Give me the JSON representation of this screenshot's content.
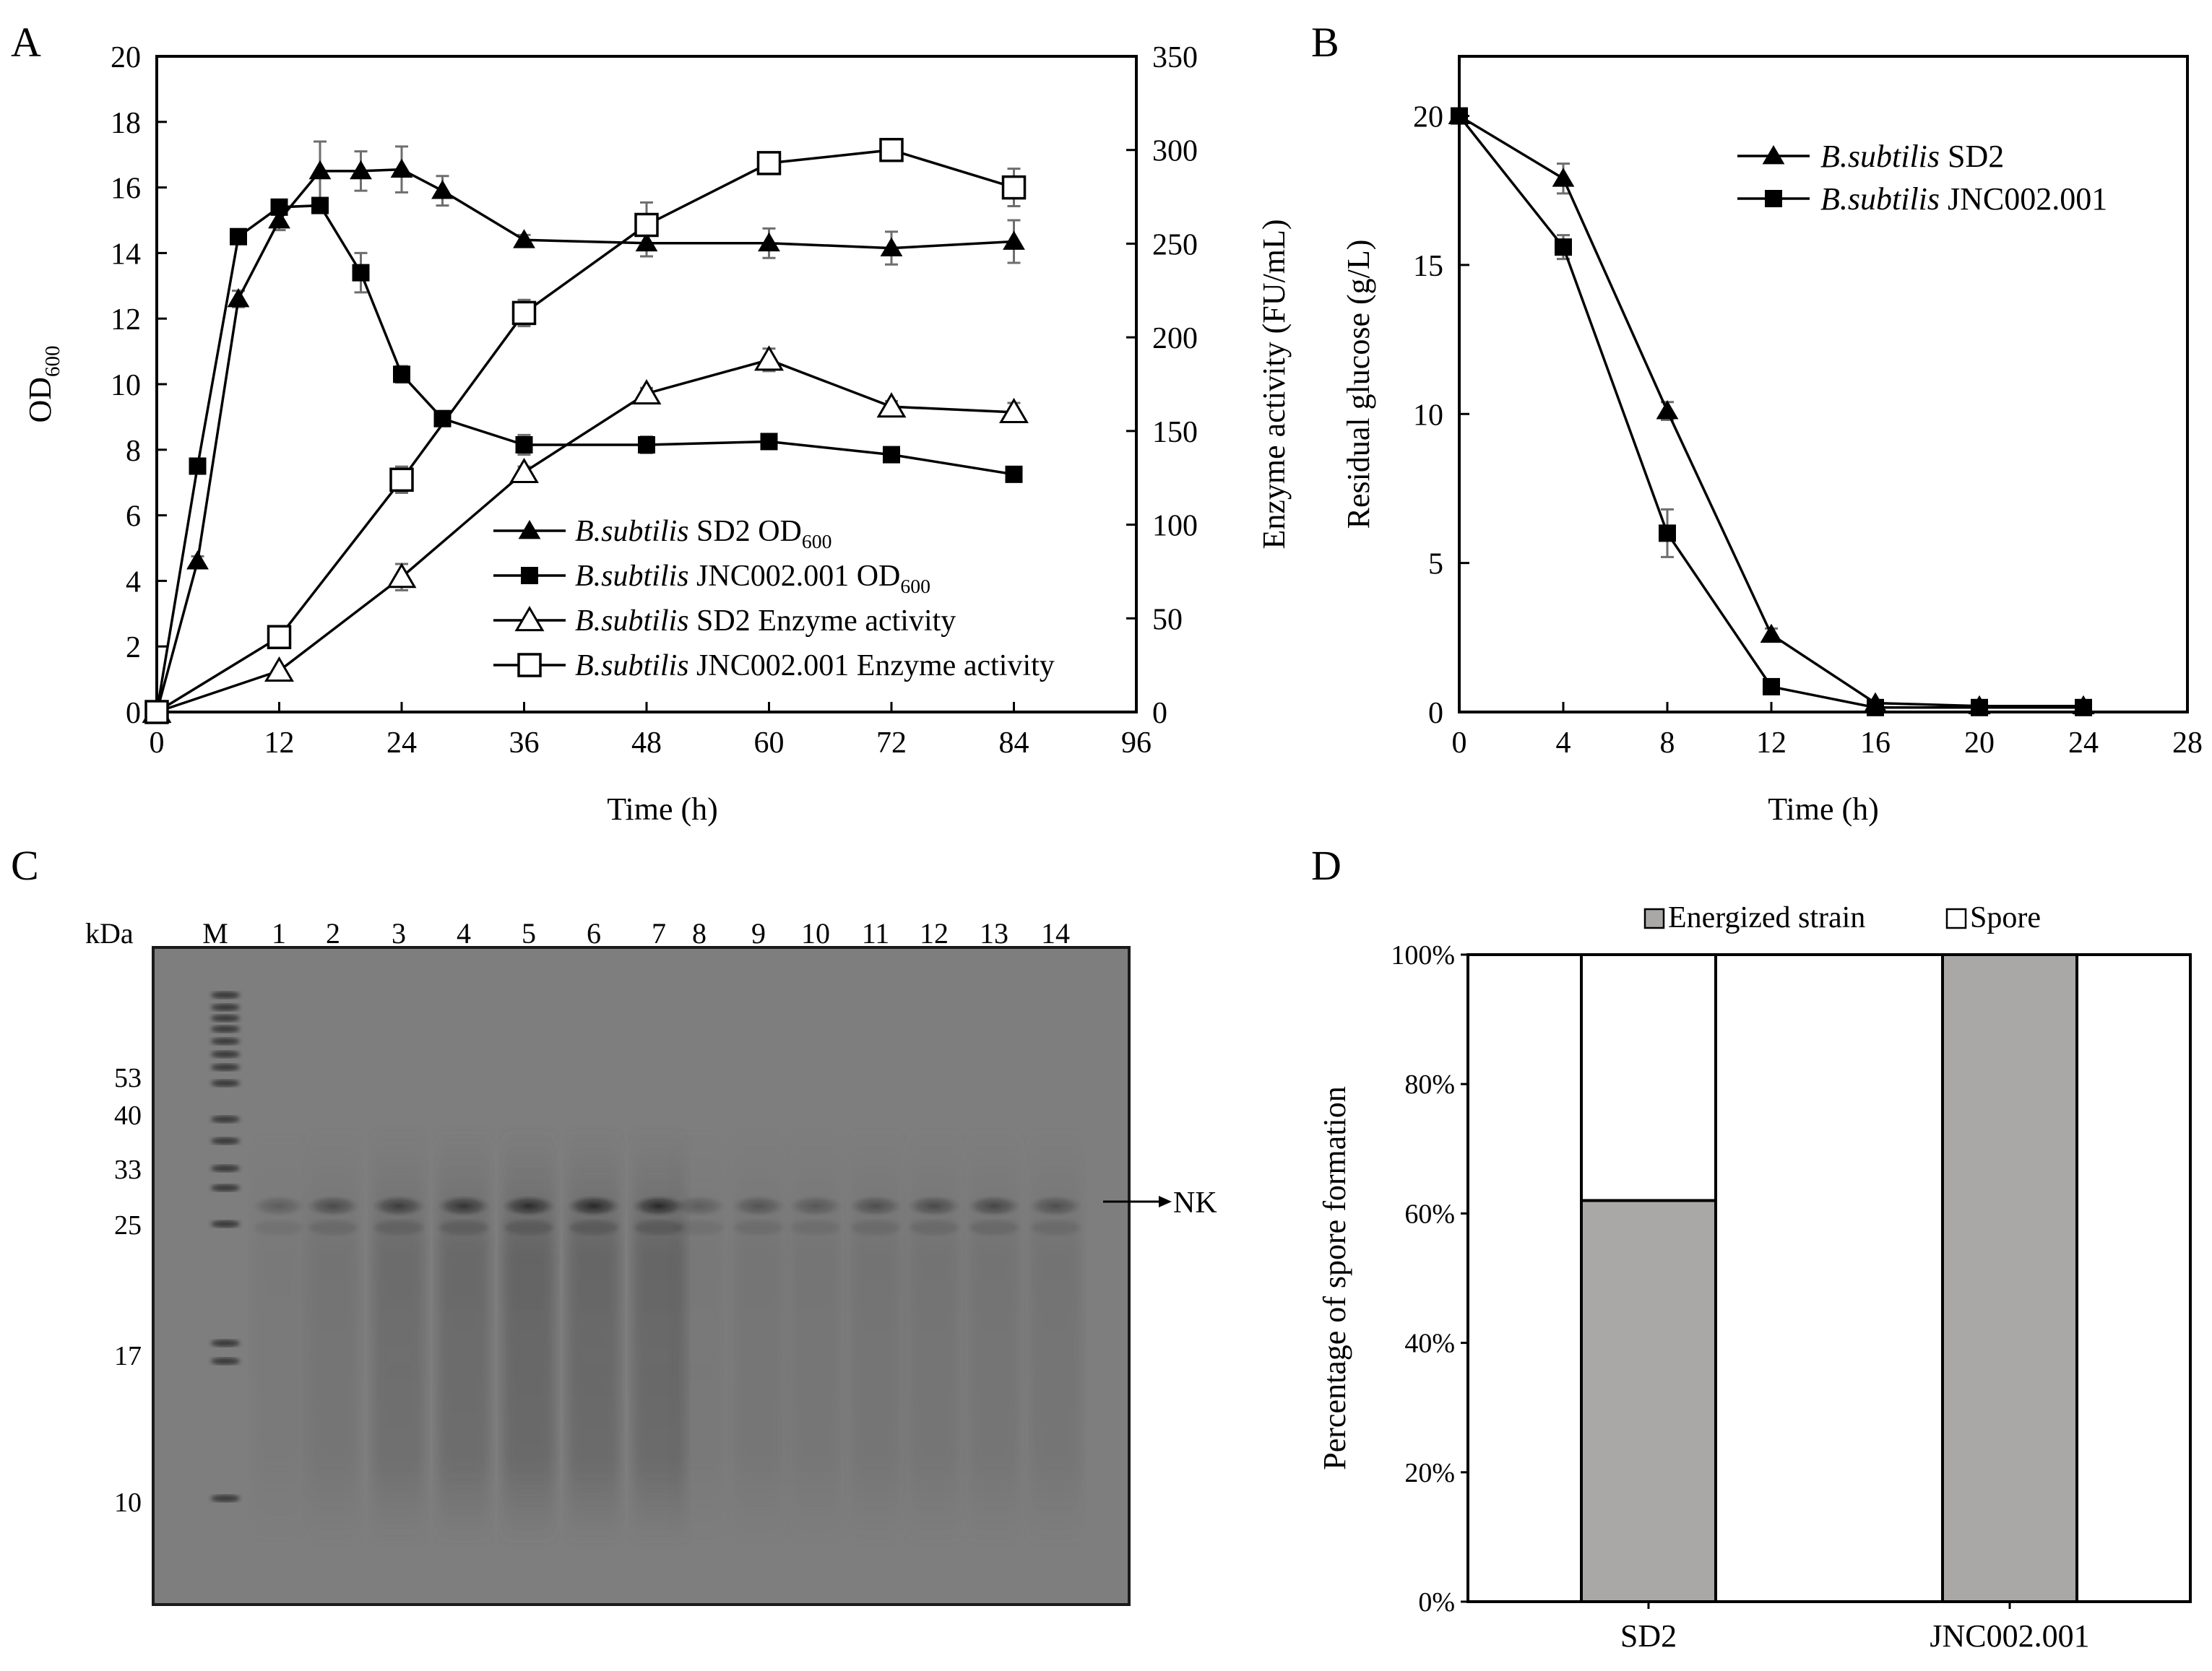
{
  "chart_data": [
    {
      "panel": "A",
      "type": "line",
      "xlabel": "Time (h)",
      "ylabel": "OD600",
      "ylabel_base": "OD",
      "ylabel_sub": "600",
      "y2label": "Enzyme activity (FU/mL)",
      "xlim": [
        0,
        96
      ],
      "xticks": [
        0,
        12,
        24,
        36,
        48,
        60,
        72,
        84,
        96
      ],
      "ylim": [
        0,
        20
      ],
      "yticks": [
        0,
        2,
        4,
        6,
        8,
        10,
        12,
        14,
        16,
        18,
        20
      ],
      "y2lim": [
        0,
        350
      ],
      "y2ticks": [
        0,
        50,
        100,
        150,
        200,
        250,
        300,
        350
      ],
      "legend_position": "lower-right inside",
      "series": [
        {
          "name": "B.subtilis SD2 OD600",
          "name_italic": "B.subtilis",
          "name_rest": " SD2 OD",
          "name_sub": "600",
          "axis": "left",
          "marker": "triangle-filled",
          "x": [
            0,
            4,
            8,
            12,
            16,
            20,
            24,
            28,
            36,
            48,
            60,
            72,
            84
          ],
          "y": [
            0,
            4.6,
            12.6,
            15.0,
            16.5,
            16.5,
            16.55,
            15.9,
            14.4,
            14.3,
            14.3,
            14.15,
            14.35
          ],
          "err": [
            0,
            0.15,
            0.25,
            0.3,
            0.9,
            0.6,
            0.7,
            0.45,
            0.15,
            0.4,
            0.45,
            0.5,
            0.65
          ]
        },
        {
          "name": "B.subtilis JNC002.001 OD600",
          "name_italic": "B.subtilis",
          "name_rest": " JNC002.001 OD",
          "name_sub": "600",
          "axis": "left",
          "marker": "square-filled",
          "x": [
            0,
            4,
            8,
            12,
            16,
            20,
            24,
            28,
            36,
            48,
            60,
            72,
            84
          ],
          "y": [
            0,
            7.5,
            14.5,
            15.4,
            15.45,
            13.4,
            10.3,
            8.95,
            8.15,
            8.15,
            8.25,
            7.85,
            7.25
          ],
          "err": [
            0,
            0.1,
            0.15,
            0.15,
            0.2,
            0.6,
            0.25,
            0.2,
            0.3,
            0.25,
            0.15,
            0.15,
            0.15
          ]
        },
        {
          "name": "B.subtilis SD2 Enzyme activity",
          "name_italic": "B.subtilis",
          "name_rest": " SD2 Enzyme activity",
          "axis": "right",
          "marker": "triangle-open",
          "x": [
            0,
            12,
            24,
            36,
            48,
            60,
            72,
            84
          ],
          "y": [
            0,
            22,
            72,
            128,
            170,
            188,
            163,
            160
          ],
          "err": [
            0,
            1,
            7,
            3,
            3,
            6,
            3,
            5
          ]
        },
        {
          "name": "B.subtilis JNC002.001 Enzyme activity",
          "name_italic": "B.subtilis",
          "name_rest": " JNC002.001 Enzyme activity",
          "axis": "right",
          "marker": "square-open",
          "x": [
            0,
            12,
            24,
            36,
            48,
            60,
            72,
            84
          ],
          "y": [
            0,
            40,
            124,
            213,
            260,
            293,
            300,
            280
          ],
          "err": [
            0,
            2,
            7,
            7,
            12,
            3,
            3,
            10
          ]
        }
      ]
    },
    {
      "panel": "B",
      "type": "line",
      "xlabel": "Time (h)",
      "ylabel": "Residual glucose (g/L)",
      "xlim": [
        0,
        28
      ],
      "xticks": [
        0,
        4,
        8,
        12,
        16,
        20,
        24,
        28
      ],
      "ylim": [
        0,
        22
      ],
      "yticks": [
        0,
        5,
        10,
        15,
        20
      ],
      "legend_position": "top-right inside",
      "series": [
        {
          "name": "B.subtilis SD2",
          "name_italic": "B.subtilis",
          "name_rest": " SD2",
          "marker": "triangle-filled",
          "x": [
            0,
            4,
            8,
            12,
            16,
            20,
            24
          ],
          "y": [
            20,
            17.9,
            10.1,
            2.6,
            0.3,
            0.2,
            0.2
          ],
          "err": [
            0,
            0.5,
            0.3,
            0.2,
            0.1,
            0.05,
            0.05
          ]
        },
        {
          "name": "B.subtilis JNC002.001",
          "name_italic": "B.subtilis",
          "name_rest": " JNC002.001",
          "marker": "square-filled",
          "x": [
            0,
            4,
            8,
            12,
            16,
            20,
            24
          ],
          "y": [
            20,
            15.6,
            6.0,
            0.85,
            0.15,
            0.15,
            0.15
          ],
          "err": [
            0,
            0.4,
            0.8,
            0.1,
            0.05,
            0.05,
            0.05
          ]
        }
      ]
    },
    {
      "panel": "D",
      "type": "bar",
      "stacked": true,
      "ylabel": "Percentage of spore formation",
      "categories": [
        "SD2",
        "JNC002.001"
      ],
      "ylim": [
        0,
        100
      ],
      "yticks": [
        "0%",
        "20%",
        "40%",
        "60%",
        "80%",
        "100%"
      ],
      "legend_position": "top",
      "series": [
        {
          "name": "Energized strain",
          "color": "#aaa8a6",
          "values": [
            62,
            100
          ]
        },
        {
          "name": "Spore",
          "color": "#ffffff",
          "values": [
            38,
            0
          ]
        }
      ]
    }
  ],
  "panel_labels": {
    "a": "A",
    "b": "B",
    "c": "C",
    "d": "D"
  },
  "gel": {
    "panel": "C",
    "unit_label": "kDa",
    "marker_lane": "M",
    "lanes": [
      "1",
      "2",
      "3",
      "4",
      "5",
      "6",
      "7",
      "8",
      "9",
      "10",
      "11",
      "12",
      "13",
      "14"
    ],
    "mw_labels": [
      "53",
      "40",
      "33",
      "25",
      "17",
      "10"
    ],
    "band_label": "NK",
    "colors": {
      "background": "#7d7d7d",
      "band": "#2a2a2a"
    }
  },
  "colors": {
    "bar_fill": "#aaa8a6",
    "error_bar": "#6e6e6e",
    "line": "#000000"
  }
}
